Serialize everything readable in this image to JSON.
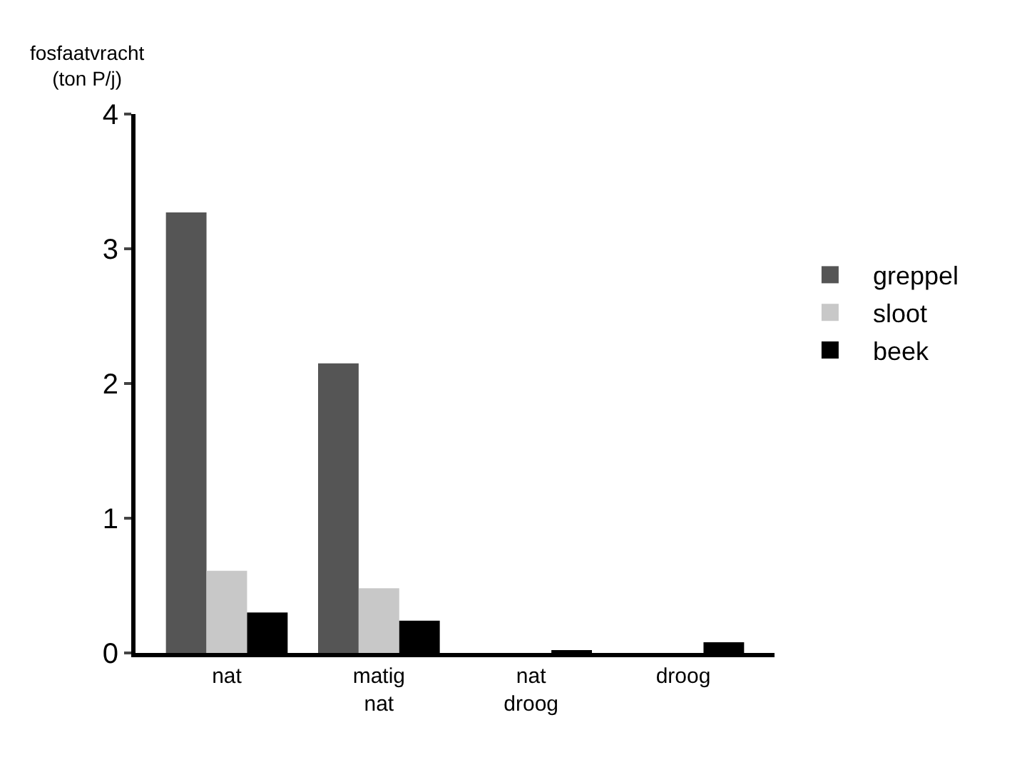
{
  "chart_data": {
    "type": "bar",
    "ylabel": "fosfaatvracht\n(ton P/j)",
    "categories": [
      "nat",
      "matig\nnat",
      "nat\ndroog",
      "droog"
    ],
    "series": [
      {
        "name": "greppel",
        "color": "#555555",
        "values": [
          3.27,
          2.15,
          null,
          null
        ]
      },
      {
        "name": "sloot",
        "color": "#c8c8c8",
        "values": [
          0.61,
          0.48,
          null,
          null
        ]
      },
      {
        "name": "beek",
        "color": "#000000",
        "values": [
          0.3,
          0.24,
          0.02,
          0.08
        ]
      }
    ],
    "ylim": [
      0,
      4
    ],
    "yticks": [
      0,
      1,
      2,
      3,
      4
    ],
    "legend": "right"
  }
}
